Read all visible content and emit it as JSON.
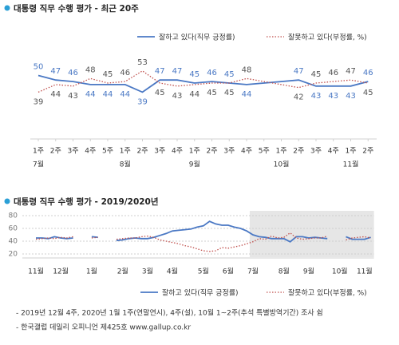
{
  "chart_data": [
    {
      "type": "line",
      "title": "대통령 직무 수행 평가 - 최근 20주",
      "categories": [
        "1주",
        "2주",
        "3주",
        "4주",
        "5주",
        "1주",
        "2주",
        "3주",
        "4주",
        "1주",
        "2주",
        "3주",
        "4주",
        "5주",
        "1주",
        "2주",
        "3주",
        "4주",
        "1주",
        "2주"
      ],
      "category_groups": [
        "7월",
        null,
        null,
        null,
        null,
        "8월",
        null,
        null,
        null,
        "9월",
        null,
        null,
        null,
        null,
        "10월",
        null,
        null,
        null,
        "11월",
        null
      ],
      "series": [
        {
          "name": "잘하고 있다(직무 긍정률)",
          "color": "#4a78c4",
          "dashed": false,
          "values": [
            50,
            47,
            46,
            44,
            44,
            44,
            39,
            47,
            47,
            45,
            46,
            45,
            44,
            45,
            46,
            47,
            43,
            43,
            43,
            46
          ],
          "value_labels": [
            "50",
            "47",
            "46",
            "44",
            "44",
            "44",
            "39",
            "47",
            "47",
            "45",
            "46",
            "45",
            "44",
            null,
            null,
            "47",
            "43",
            "43",
            "43",
            "46"
          ]
        },
        {
          "name": "잘못하고 있다(부정률, %)",
          "color": "#c0504d",
          "dashed": true,
          "values": [
            39,
            44,
            43,
            48,
            45,
            46,
            53,
            45,
            43,
            44,
            45,
            45,
            48,
            46,
            44,
            42,
            45,
            46,
            47,
            45
          ],
          "value_labels": [
            "39",
            "44",
            "43",
            "48",
            "45",
            "46",
            "53",
            "45",
            "43",
            "44",
            "45",
            "45",
            "48",
            null,
            null,
            "42",
            "45",
            "46",
            "47",
            "45"
          ]
        }
      ]
    },
    {
      "type": "line",
      "title": "대통령 직무 수행 평가 - 2019/2020년",
      "categories": [
        "11월",
        null,
        null,
        null,
        "12월",
        null,
        null,
        null,
        null,
        "1월",
        null,
        null,
        null,
        null,
        "2월",
        null,
        null,
        null,
        "3월",
        null,
        null,
        null,
        "4월",
        null,
        null,
        null,
        null,
        "5월",
        null,
        null,
        null,
        "6월",
        null,
        null,
        null,
        "7월",
        null,
        null,
        null,
        null,
        "8월",
        null,
        null,
        null,
        "9월",
        null,
        null,
        null,
        null,
        "10월",
        null,
        null,
        null,
        "11월",
        null
      ],
      "ylim": [
        20,
        80
      ],
      "yticks": [
        20,
        40,
        60,
        80
      ],
      "grid": true,
      "series": [
        {
          "name": "잘하고 있다(직무 긍정률)",
          "color": "#4a78c4",
          "dashed": false,
          "values": [
            45,
            45,
            44,
            47,
            45,
            44,
            45,
            null,
            null,
            47,
            46,
            null,
            null,
            41,
            42,
            44,
            45,
            44,
            44,
            46,
            49,
            52,
            56,
            57,
            58,
            59,
            62,
            64,
            71,
            67,
            65,
            65,
            62,
            60,
            56,
            50,
            47,
            46,
            44,
            44,
            44,
            39,
            47,
            47,
            45,
            46,
            45,
            44,
            null,
            null,
            47,
            43,
            43,
            43,
            46
          ]
        },
        {
          "name": "잘못하고 있다(부정률, %)",
          "color": "#c0504d",
          "dashed": true,
          "values": [
            43,
            44,
            45,
            44,
            46,
            45,
            47,
            null,
            null,
            45,
            46,
            null,
            null,
            43,
            44,
            45,
            45,
            47,
            48,
            46,
            42,
            40,
            38,
            36,
            33,
            31,
            28,
            25,
            24,
            25,
            30,
            29,
            31,
            33,
            36,
            39,
            44,
            43,
            48,
            45,
            46,
            53,
            45,
            43,
            44,
            45,
            45,
            48,
            null,
            null,
            42,
            45,
            46,
            47,
            45
          ]
        }
      ]
    }
  ],
  "notes": [
    "- 2019년 12월 4주, 2020년 1월 1주(연말연시), 4주(설), 10월 1~2주(추석 특별방역기간) 조사 쉼",
    "- 한국갤럽 데일리 오피니언 제425호 www.gallup.co.kr"
  ]
}
